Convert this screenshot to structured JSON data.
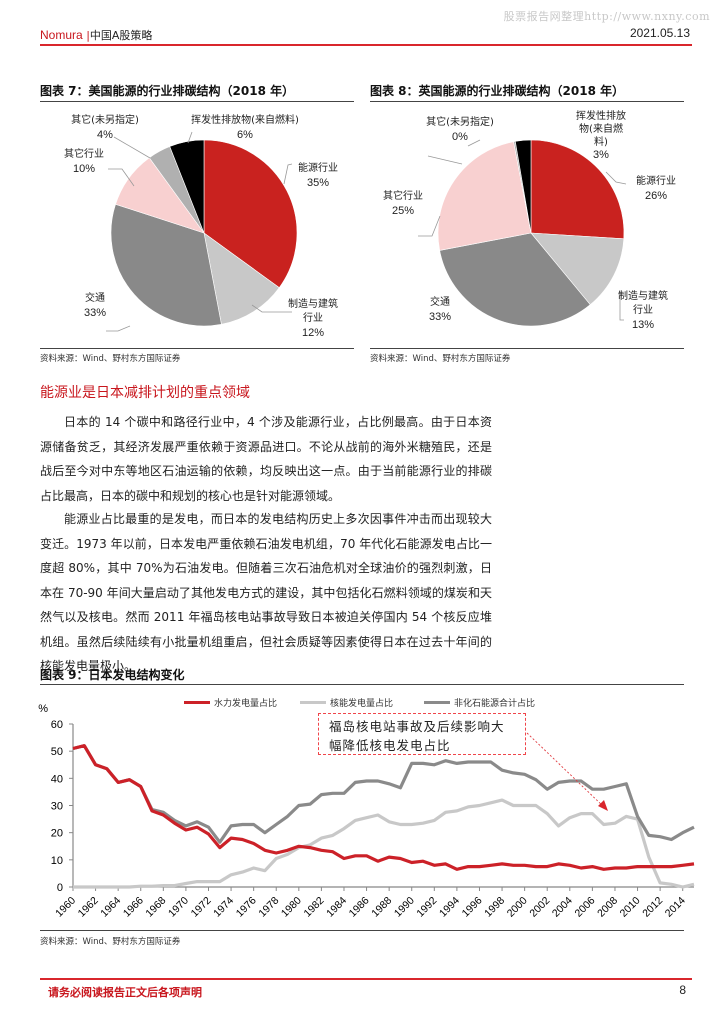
{
  "watermark": "股票报告网整理http://www.nxny.com",
  "header": {
    "brand": "Nomura",
    "separator": "|",
    "report_series": "中国A股策略",
    "date": "2021.05.13"
  },
  "figure7": {
    "title": "图表 7：美国能源的行业排碳结构（2018 年）",
    "source": "资料来源：Wind、野村东方国际证券",
    "slices": [
      {
        "label": "能源行业",
        "pct": "35%",
        "value": 35,
        "color": "#c9221f"
      },
      {
        "label": "制造与建筑行业",
        "label_lines": [
          "制造与建筑",
          "行业"
        ],
        "pct": "12%",
        "value": 12,
        "color": "#c8c8c8"
      },
      {
        "label": "交通",
        "pct": "33%",
        "value": 33,
        "color": "#898989"
      },
      {
        "label": "其它行业",
        "pct": "10%",
        "value": 10,
        "color": "#f8d0d0"
      },
      {
        "label": "其它(未另指定)",
        "pct": "4%",
        "value": 4,
        "color": "#b0b0b0"
      },
      {
        "label": "挥发性排放物(来自燃料)",
        "pct": "6%",
        "value": 6,
        "color": "#000000"
      }
    ]
  },
  "figure8": {
    "title": "图表 8：英国能源的行业排碳结构（2018 年）",
    "source": "资料来源：Wind、野村东方国际证券",
    "slices": [
      {
        "label": "能源行业",
        "pct": "26%",
        "value": 26,
        "color": "#c9221f"
      },
      {
        "label": "制造与建筑行业",
        "label_lines": [
          "制造与建筑",
          "行业"
        ],
        "pct": "13%",
        "value": 13,
        "color": "#c8c8c8"
      },
      {
        "label": "交通",
        "pct": "33%",
        "value": 33,
        "color": "#898989"
      },
      {
        "label": "其它行业",
        "pct": "25%",
        "value": 25,
        "color": "#f8d0d0"
      },
      {
        "label": "其它(未另指定)",
        "pct": "0%",
        "value": 0.3,
        "color": "#b0b0b0"
      },
      {
        "label": "挥发性排放物(来自燃料)",
        "label_lines": [
          "挥发性排放",
          "物(来自燃",
          "料)"
        ],
        "pct": "3%",
        "value": 2.7,
        "color": "#000000"
      }
    ]
  },
  "section": {
    "title": "能源业是日本减排计划的重点领域"
  },
  "paragraphs": [
    "日本的 14 个碳中和路径行业中，4 个涉及能源行业，占比例最高。由于日本资源储备贫乏，其经济发展严重依赖于资源品进口。不论从战前的海外米糖殖民，还是战后至今对中东等地区石油运输的依赖，均反映出这一点。由于当前能源行业的排碳占比最高，日本的碳中和规划的核心也是针对能源领域。",
    "能源业占比最重的是发电，而日本的发电结构历史上多次因事件冲击而出现较大变迁。1973 年以前，日本发电严重依赖石油发电机组，70 年代化石能源发电占比一度超 80%，其中 70%为石油发电。但随着三次石油危机对全球油价的强烈刺激，日本在 70-90 年间大量启动了其他发电方式的建设，其中包括化石燃料领域的煤炭和天然气以及核电。然而 2011 年福岛核电站事故导致日本被迫关停国内 54 个核反应堆机组。虽然后续陆续有小批量机组重启，但社会质疑等因素使得日本在过去十年间的核能发电量极小。"
  ],
  "figure9": {
    "title": "图表 9：日本发电结构变化",
    "source": "资料来源：Wind、野村东方国际证券",
    "annotation": [
      "福岛核电站事故及后续影响大",
      "幅降低核电发电占比"
    ]
  },
  "chart_data": [
    {
      "type": "pie",
      "title": "图表 7：美国能源的行业排碳结构（2018 年）",
      "categories": [
        "能源行业",
        "制造与建筑行业",
        "交通",
        "其它行业",
        "其它(未另指定)",
        "挥发性排放物(来自燃料)"
      ],
      "values": [
        35,
        12,
        33,
        10,
        4,
        6
      ]
    },
    {
      "type": "pie",
      "title": "图表 8：英国能源的行业排碳结构（2018 年）",
      "categories": [
        "能源行业",
        "制造与建筑行业",
        "交通",
        "其它行业",
        "其它(未另指定)",
        "挥发性排放物(来自燃料)"
      ],
      "values": [
        26,
        13,
        33,
        25,
        0,
        3
      ]
    },
    {
      "type": "line",
      "title": "图表 9：日本发电结构变化",
      "ylabel": "%",
      "xlabel": "",
      "ylim": [
        0,
        60
      ],
      "yticks": [
        0,
        10,
        20,
        30,
        40,
        50,
        60
      ],
      "xtick_labels": [
        "1960",
        "1962",
        "1964",
        "1966",
        "1968",
        "1970",
        "1972",
        "1974",
        "1976",
        "1978",
        "1980",
        "1982",
        "1984",
        "1986",
        "1988",
        "1990",
        "1992",
        "1994",
        "1996",
        "1998",
        "2000",
        "2002",
        "2004",
        "2006",
        "2008",
        "2010",
        "2012",
        "2014"
      ],
      "x": [
        1960,
        1961,
        1962,
        1963,
        1964,
        1965,
        1966,
        1967,
        1968,
        1969,
        1970,
        1971,
        1972,
        1973,
        1974,
        1975,
        1976,
        1977,
        1978,
        1979,
        1980,
        1981,
        1982,
        1983,
        1984,
        1985,
        1986,
        1987,
        1988,
        1989,
        1990,
        1991,
        1992,
        1993,
        1994,
        1995,
        1996,
        1997,
        1998,
        1999,
        2000,
        2001,
        2002,
        2003,
        2004,
        2005,
        2006,
        2007,
        2008,
        2009,
        2010,
        2011,
        2012,
        2013,
        2014,
        2015
      ],
      "legend_position": "top",
      "grid": false,
      "series": [
        {
          "name": "水力发电量占比",
          "color": "#cc2128",
          "values": [
            51,
            52,
            45,
            43.5,
            38.5,
            39.5,
            37,
            28,
            26.5,
            23.5,
            21,
            22,
            19.5,
            14.5,
            18,
            17.5,
            16,
            13.5,
            12.5,
            13.5,
            15,
            14.5,
            13.5,
            13,
            10.5,
            11.5,
            11.5,
            9.5,
            11,
            10.5,
            9,
            9.5,
            8,
            8.5,
            6.5,
            7.5,
            7.5,
            8,
            8.5,
            8,
            8,
            7.5,
            7.5,
            8.5,
            8,
            7,
            7.5,
            6.5,
            7,
            7,
            7.5,
            7.5,
            7.5,
            7.5,
            8,
            8.5
          ]
        },
        {
          "name": "核能发电量占比",
          "color": "#c8c8c8",
          "values": [
            0,
            0,
            0,
            0,
            0,
            0,
            0.3,
            0.3,
            0.5,
            0.5,
            1.3,
            2,
            2,
            2,
            4.5,
            5.5,
            7,
            6,
            10.5,
            12,
            14.5,
            15.5,
            18,
            19,
            21.5,
            24.5,
            25.5,
            26.5,
            24,
            23,
            23,
            23.5,
            24.5,
            27.5,
            28,
            29.5,
            30,
            31,
            32,
            30,
            30,
            30,
            27,
            22.5,
            25.5,
            27,
            27,
            23,
            23.5,
            26,
            25,
            11,
            1.5,
            1,
            0,
            1
          ]
        },
        {
          "name": "非化石能源合计占比",
          "color": "#8a8a8a",
          "values": [
            51,
            52,
            45,
            43.5,
            38.5,
            39.5,
            37,
            28.5,
            27.5,
            24.5,
            22.5,
            24,
            22,
            16.5,
            22.5,
            23,
            23,
            20,
            23,
            26,
            30,
            30.5,
            34,
            34.5,
            34.5,
            38.5,
            39,
            39,
            38,
            36.5,
            45.5,
            45.5,
            45,
            46.5,
            45.5,
            46,
            46,
            46,
            43,
            42,
            41.5,
            39.5,
            36,
            38.5,
            39,
            39,
            36,
            36,
            37,
            38,
            26,
            19,
            18.5,
            17.5,
            20,
            22
          ]
        }
      ]
    }
  ]
}
